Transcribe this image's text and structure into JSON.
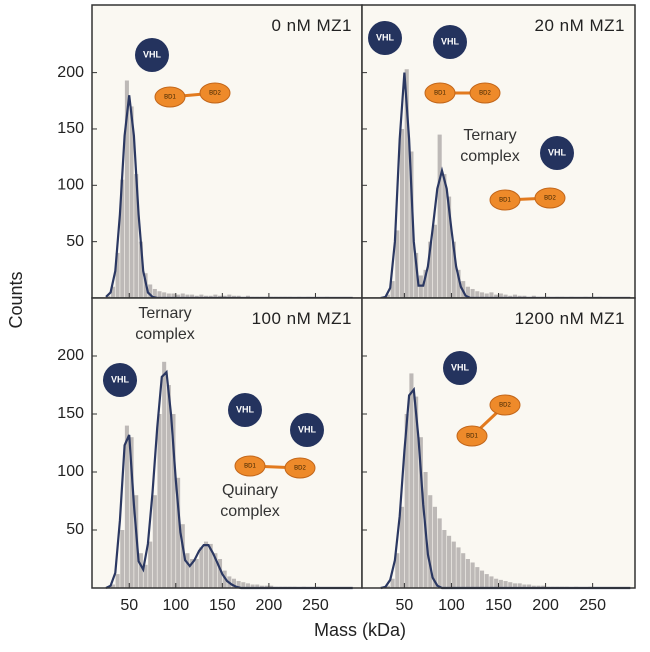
{
  "axis_labels": {
    "x": "Mass (kDa)",
    "y": "Counts"
  },
  "icons": {
    "vhl": "VHL",
    "bd1": "BD1",
    "bd2": "BD2"
  },
  "chart_data": [
    {
      "type": "histogram",
      "title": "0 nM MZ1",
      "color": "#bdb9b7",
      "bins": [
        25,
        30,
        35,
        40,
        45,
        50,
        55,
        60,
        65,
        70,
        75,
        80,
        85,
        90,
        95,
        100,
        105,
        110,
        115,
        120,
        125,
        130,
        135,
        140,
        145,
        150,
        155,
        160,
        165,
        170,
        175,
        180,
        185,
        190,
        195,
        200,
        205,
        210,
        215,
        220,
        225,
        230,
        235,
        240,
        245,
        250,
        255,
        260,
        265,
        270,
        275,
        280,
        285,
        290
      ],
      "counts": [
        2,
        10,
        40,
        105,
        193,
        170,
        110,
        50,
        22,
        12,
        8,
        6,
        5,
        4,
        4,
        3,
        4,
        3,
        3,
        2,
        3,
        2,
        2,
        3,
        2,
        2,
        3,
        2,
        2,
        1,
        2,
        1,
        1,
        1,
        1,
        1,
        1,
        1,
        1,
        1,
        0,
        1,
        0,
        1,
        0,
        0,
        0,
        1,
        0,
        0,
        0,
        0,
        0
      ],
      "fit": {
        "color": "#2b3862",
        "x": [
          25,
          30,
          35,
          40,
          45,
          50,
          55,
          60,
          65,
          70,
          75,
          80,
          85,
          90,
          95,
          100,
          105,
          110,
          115,
          120,
          125,
          130,
          135,
          140,
          145,
          150,
          155,
          160,
          165,
          170,
          175,
          290
        ],
        "y": [
          1,
          5,
          24,
          74,
          144,
          180,
          144,
          74,
          24,
          5,
          1,
          0,
          0,
          0,
          0,
          0,
          0,
          0,
          0,
          0,
          0,
          0,
          0,
          0,
          0,
          0,
          0,
          0,
          0,
          0,
          0,
          0
        ]
      },
      "xlim": [
        10,
        300
      ],
      "ylim": [
        0,
        260
      ],
      "xticks": [
        50,
        100,
        150,
        200,
        250
      ],
      "yticks": [
        50,
        100,
        150,
        200
      ],
      "annotations": []
    },
    {
      "type": "histogram",
      "title": "20 nM MZ1",
      "color": "#bdb9b7",
      "bins": [
        25,
        30,
        35,
        40,
        45,
        50,
        55,
        60,
        65,
        70,
        75,
        80,
        85,
        90,
        95,
        100,
        105,
        110,
        115,
        120,
        125,
        130,
        135,
        140,
        145,
        150,
        155,
        160,
        165,
        170,
        175,
        180,
        185,
        190,
        195,
        200,
        205,
        210,
        215,
        220,
        225,
        230,
        235,
        240,
        245,
        250,
        255,
        260,
        265,
        270,
        275,
        280,
        285,
        290
      ],
      "counts": [
        1,
        3,
        15,
        60,
        150,
        203,
        130,
        40,
        20,
        25,
        50,
        65,
        145,
        110,
        90,
        50,
        25,
        15,
        10,
        8,
        6,
        5,
        4,
        5,
        3,
        4,
        3,
        2,
        3,
        2,
        2,
        1,
        2,
        1,
        1,
        1,
        0,
        1,
        1,
        0,
        1,
        0,
        0,
        1,
        0,
        0,
        1,
        0,
        0,
        0,
        0,
        0,
        0
      ],
      "fit": {
        "color": "#2b3862",
        "x": [
          25,
          30,
          35,
          40,
          45,
          50,
          55,
          60,
          65,
          70,
          75,
          80,
          85,
          90,
          95,
          100,
          105,
          110,
          115,
          120,
          125,
          130,
          135,
          140,
          145,
          150,
          155,
          160,
          165,
          170,
          175,
          290
        ],
        "y": [
          0,
          1,
          9,
          50,
          141,
          200,
          141,
          50,
          11,
          11,
          28,
          61,
          97,
          113,
          97,
          61,
          28,
          10,
          2,
          0,
          0,
          0,
          0,
          0,
          0,
          0,
          0,
          0,
          0,
          0,
          0,
          0
        ]
      },
      "xlim": [
        5,
        295
      ],
      "ylim": [
        0,
        260
      ],
      "xticks": [
        50,
        100,
        150,
        200,
        250
      ],
      "yticks": [
        50,
        100,
        150,
        200
      ],
      "annotations": [
        [
          "Ternary",
          "complex"
        ]
      ]
    },
    {
      "type": "histogram",
      "title": "100 nM MZ1",
      "color": "#bdb9b7",
      "bins": [
        25,
        30,
        35,
        40,
        45,
        50,
        55,
        60,
        65,
        70,
        75,
        80,
        85,
        90,
        95,
        100,
        105,
        110,
        115,
        120,
        125,
        130,
        135,
        140,
        145,
        150,
        155,
        160,
        165,
        170,
        175,
        180,
        185,
        190,
        195,
        200,
        205,
        210,
        215,
        220,
        225,
        230,
        235,
        240,
        245,
        250,
        255,
        260,
        265,
        270,
        275,
        280,
        285,
        290
      ],
      "counts": [
        1,
        3,
        12,
        50,
        140,
        130,
        80,
        30,
        20,
        40,
        80,
        150,
        195,
        175,
        150,
        95,
        55,
        30,
        25,
        25,
        35,
        40,
        38,
        30,
        25,
        15,
        10,
        8,
        6,
        5,
        4,
        3,
        3,
        2,
        2,
        2,
        1,
        1,
        1,
        1,
        1,
        0,
        1,
        0,
        0,
        1,
        0,
        0,
        0,
        0,
        0,
        0,
        0
      ],
      "fit": {
        "color": "#2b3862",
        "x": [
          25,
          30,
          35,
          40,
          45,
          50,
          55,
          60,
          65,
          70,
          75,
          80,
          85,
          90,
          95,
          100,
          105,
          110,
          115,
          120,
          125,
          130,
          135,
          140,
          145,
          150,
          155,
          160,
          165,
          170,
          175,
          290
        ],
        "y": [
          0,
          2,
          13,
          58,
          123,
          132,
          72,
          23,
          16,
          38,
          82,
          138,
          182,
          186,
          149,
          93,
          48,
          24,
          19,
          24,
          32,
          37,
          37,
          30,
          21,
          12,
          6,
          3,
          1,
          0,
          0,
          0
        ]
      },
      "xlim": [
        10,
        300
      ],
      "ylim": [
        0,
        250
      ],
      "xticks": [
        50,
        100,
        150,
        200,
        250
      ],
      "yticks": [
        50,
        100,
        150,
        200
      ],
      "annotations": [
        [
          "Ternary",
          "complex"
        ],
        [
          "Quinary",
          "complex"
        ]
      ]
    },
    {
      "type": "histogram",
      "title": "1200 nM MZ1",
      "color": "#bdb9b7",
      "bins": [
        25,
        30,
        35,
        40,
        45,
        50,
        55,
        60,
        65,
        70,
        75,
        80,
        85,
        90,
        95,
        100,
        105,
        110,
        115,
        120,
        125,
        130,
        135,
        140,
        145,
        150,
        155,
        160,
        165,
        170,
        175,
        180,
        185,
        190,
        195,
        200,
        205,
        210,
        215,
        220,
        225,
        230,
        235,
        240,
        245,
        250,
        255,
        260,
        265,
        270,
        275,
        280,
        285,
        290
      ],
      "counts": [
        0,
        2,
        8,
        30,
        70,
        150,
        185,
        165,
        130,
        100,
        80,
        70,
        60,
        50,
        45,
        40,
        35,
        30,
        25,
        22,
        18,
        15,
        12,
        10,
        8,
        7,
        6,
        5,
        4,
        4,
        3,
        3,
        2,
        2,
        2,
        1,
        1,
        1,
        1,
        1,
        0,
        1,
        0,
        0,
        1,
        0,
        0,
        0,
        0,
        0,
        0,
        0,
        0
      ],
      "fit": {
        "color": "#2b3862",
        "x": [
          25,
          30,
          35,
          40,
          45,
          50,
          55,
          60,
          65,
          70,
          75,
          80,
          85,
          90,
          95,
          100,
          105,
          110,
          115,
          120,
          125,
          130,
          135,
          140,
          145,
          150,
          155,
          160,
          165,
          170,
          175,
          290
        ],
        "y": [
          0,
          1,
          7,
          24,
          62,
          118,
          166,
          171,
          129,
          72,
          29,
          9,
          2,
          0,
          0,
          0,
          0,
          0,
          0,
          0,
          0,
          0,
          0,
          0,
          0,
          0,
          0,
          0,
          0,
          0,
          0,
          0
        ]
      },
      "xlim": [
        5,
        295
      ],
      "ylim": [
        0,
        250
      ],
      "xticks": [
        50,
        100,
        150,
        200,
        250
      ],
      "yticks": [
        50,
        100,
        150,
        200
      ],
      "annotations": []
    }
  ]
}
